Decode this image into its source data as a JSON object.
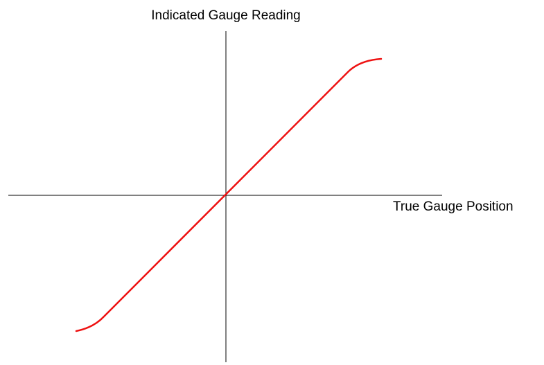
{
  "y_axis_label": "Indicated Gauge Reading",
  "x_axis_label": "True Gauge Position"
}
